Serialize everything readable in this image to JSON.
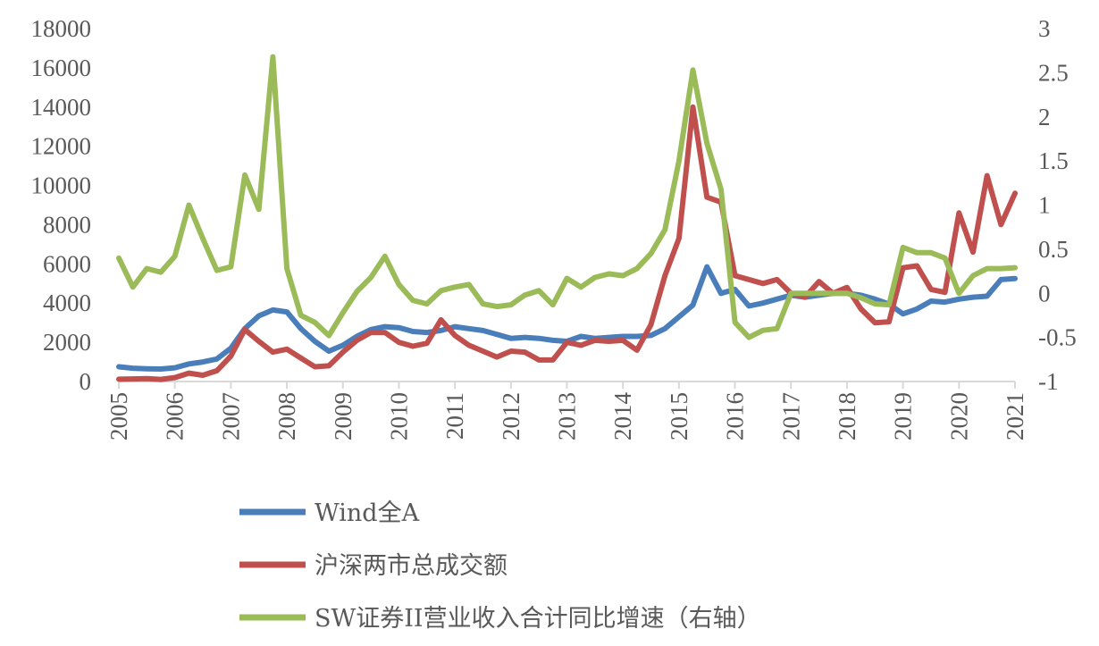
{
  "chart_data": {
    "type": "line",
    "title": "",
    "xlabel": "",
    "ylabel": "",
    "x_ticks": [
      "2005",
      "2006",
      "2007",
      "2008",
      "2009",
      "2010",
      "2011",
      "2012",
      "2013",
      "2014",
      "2015",
      "2016",
      "2017",
      "2018",
      "2019",
      "2020",
      "2021"
    ],
    "xlim": [
      2005,
      2021
    ],
    "y_left": {
      "ylim": [
        0,
        18000
      ],
      "ticks": [
        0,
        2000,
        4000,
        6000,
        8000,
        10000,
        12000,
        14000,
        16000,
        18000
      ]
    },
    "y_right": {
      "ylim": [
        -1,
        3
      ],
      "ticks": [
        "-1",
        "-0.5",
        "0",
        "0.5",
        "1",
        "1.5",
        "2",
        "2.5",
        "3"
      ],
      "tick_values": [
        -1,
        -0.5,
        0,
        0.5,
        1,
        1.5,
        2,
        2.5,
        3
      ]
    },
    "grid": false,
    "legend_position": "bottom",
    "series": [
      {
        "name": "Wind全A",
        "axis": "left",
        "color": "#4a7ebb",
        "x": [
          2005,
          2005.25,
          2005.5,
          2005.75,
          2006,
          2006.25,
          2006.5,
          2006.75,
          2007,
          2007.25,
          2007.5,
          2007.75,
          2008,
          2008.25,
          2008.5,
          2008.75,
          2009,
          2009.25,
          2009.5,
          2009.75,
          2010,
          2010.25,
          2010.5,
          2010.75,
          2011,
          2011.25,
          2011.5,
          2011.75,
          2012,
          2012.25,
          2012.5,
          2012.75,
          2013,
          2013.25,
          2013.5,
          2013.75,
          2014,
          2014.25,
          2014.5,
          2014.75,
          2015,
          2015.25,
          2015.5,
          2015.75,
          2016,
          2016.25,
          2016.5,
          2016.75,
          2017,
          2017.25,
          2017.5,
          2017.75,
          2018,
          2018.25,
          2018.5,
          2018.75,
          2019,
          2019.25,
          2019.5,
          2019.75,
          2020,
          2020.25,
          2020.5,
          2020.75,
          2021
        ],
        "values": [
          750,
          680,
          650,
          640,
          700,
          900,
          1000,
          1150,
          1700,
          2700,
          3350,
          3650,
          3550,
          2700,
          2050,
          1550,
          1850,
          2300,
          2650,
          2800,
          2750,
          2550,
          2500,
          2600,
          2800,
          2700,
          2600,
          2400,
          2200,
          2250,
          2200,
          2100,
          2050,
          2300,
          2200,
          2250,
          2300,
          2300,
          2350,
          2700,
          3300,
          3900,
          5850,
          4500,
          4700,
          3850,
          4000,
          4200,
          4400,
          4300,
          4400,
          4500,
          4500,
          4400,
          4200,
          3950,
          3450,
          3700,
          4100,
          4050,
          4200,
          4300,
          4350,
          5200,
          5250
        ]
      },
      {
        "name": "沪深两市总成交额",
        "axis": "left",
        "color": "#c0504d",
        "x": [
          2005,
          2005.25,
          2005.5,
          2005.75,
          2006,
          2006.25,
          2006.5,
          2006.75,
          2007,
          2007.25,
          2007.5,
          2007.75,
          2008,
          2008.25,
          2008.5,
          2008.75,
          2009,
          2009.25,
          2009.5,
          2009.75,
          2010,
          2010.25,
          2010.5,
          2010.75,
          2011,
          2011.25,
          2011.5,
          2011.75,
          2012,
          2012.25,
          2012.5,
          2012.75,
          2013,
          2013.25,
          2013.5,
          2013.75,
          2014,
          2014.25,
          2014.5,
          2014.75,
          2015,
          2015.25,
          2015.5,
          2015.75,
          2016,
          2016.25,
          2016.5,
          2016.75,
          2017,
          2017.25,
          2017.5,
          2017.75,
          2018,
          2018.25,
          2018.5,
          2018.75,
          2019,
          2019.25,
          2019.5,
          2019.75,
          2020,
          2020.25,
          2020.5,
          2020.75,
          2021
        ],
        "values": [
          120,
          130,
          150,
          110,
          200,
          430,
          320,
          550,
          1300,
          2650,
          2050,
          1500,
          1650,
          1200,
          750,
          800,
          1500,
          2100,
          2500,
          2500,
          2000,
          1800,
          1950,
          3150,
          2350,
          1850,
          1550,
          1250,
          1550,
          1500,
          1100,
          1100,
          2000,
          1850,
          2100,
          2050,
          2100,
          1600,
          2900,
          5400,
          7300,
          14000,
          9400,
          9150,
          5400,
          5200,
          5000,
          5200,
          4500,
          4300,
          5100,
          4500,
          4800,
          3700,
          3000,
          3050,
          5800,
          5900,
          4700,
          4550,
          8600,
          6600,
          10500,
          8000,
          9600
        ]
      },
      {
        "name": "SW证券II营业收入合计同比增速（右轴）",
        "axis": "right",
        "color": "#9bbb59",
        "x": [
          2005,
          2005.25,
          2005.5,
          2005.75,
          2006,
          2006.25,
          2006.5,
          2006.75,
          2007,
          2007.25,
          2007.5,
          2007.75,
          2008,
          2008.25,
          2008.5,
          2008.75,
          2009,
          2009.25,
          2009.5,
          2009.75,
          2010,
          2010.25,
          2010.5,
          2010.75,
          2011,
          2011.25,
          2011.5,
          2011.75,
          2012,
          2012.25,
          2012.5,
          2012.75,
          2013,
          2013.25,
          2013.5,
          2013.75,
          2014,
          2014.25,
          2014.5,
          2014.75,
          2015,
          2015.25,
          2015.5,
          2015.75,
          2016,
          2016.25,
          2016.5,
          2016.75,
          2017,
          2017.25,
          2017.5,
          2017.75,
          2018,
          2018.25,
          2018.5,
          2018.75,
          2019,
          2019.25,
          2019.5,
          2019.75,
          2020,
          2020.25,
          2020.5,
          2020.75,
          2021
        ],
        "values": [
          0.4,
          0.07,
          0.28,
          0.24,
          0.42,
          1.0,
          0.62,
          0.26,
          0.3,
          1.34,
          0.95,
          2.68,
          0.28,
          -0.25,
          -0.33,
          -0.48,
          -0.22,
          0.02,
          0.18,
          0.42,
          0.1,
          -0.08,
          -0.12,
          0.03,
          0.07,
          0.1,
          -0.12,
          -0.15,
          -0.13,
          -0.02,
          0.03,
          -0.13,
          0.17,
          0.07,
          0.18,
          0.22,
          0.2,
          0.28,
          0.45,
          0.72,
          1.5,
          2.53,
          1.7,
          1.18,
          -0.33,
          -0.5,
          -0.42,
          -0.4,
          0.0,
          0.0,
          0.0,
          0.0,
          0.0,
          -0.05,
          -0.12,
          -0.13,
          0.52,
          0.46,
          0.46,
          0.4,
          0.0,
          0.2,
          0.28,
          0.28,
          0.29
        ]
      }
    ]
  }
}
